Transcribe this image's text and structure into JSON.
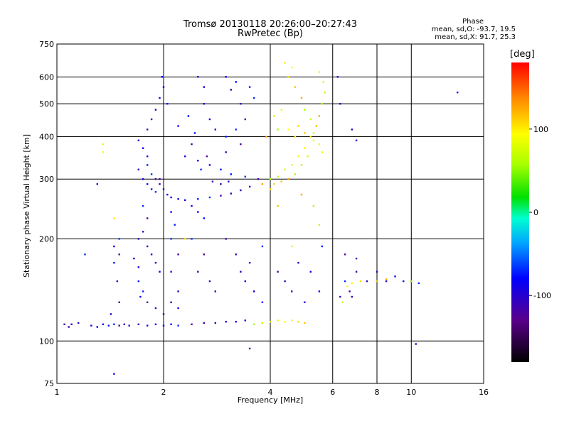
{
  "chart_data": {
    "type": "scatter",
    "title": "Tromsø 20130118 20:26:00–20:27:43",
    "subtitle": "RwPretec (Bp)",
    "xlabel": "Frequency [MHz]",
    "ylabel": "Stationary phase Virtual Height [km]",
    "x_scale": "log",
    "y_scale": "log",
    "xlim": [
      1,
      16
    ],
    "ylim": [
      75,
      750
    ],
    "x_ticks": [
      1,
      2,
      4,
      6,
      8,
      10,
      16
    ],
    "y_ticks": [
      75,
      100,
      200,
      300,
      400,
      500,
      600,
      750
    ],
    "grid": true,
    "stats": {
      "title": "Phase",
      "o_mode": "mean, sd,O:  -93.7, 19.5",
      "x_mode": "mean, sd,X:  91.7, 25.3"
    },
    "colorbar": {
      "label": "[deg]",
      "ticks": [
        100,
        0,
        -100
      ],
      "range": [
        -180,
        180
      ],
      "colormap": "rainbow"
    },
    "series": [
      {
        "mode": "O",
        "phase_mean": -93.7,
        "phase_sd": 19.5,
        "points": [
          [
            1.05,
            112
          ],
          [
            1.08,
            110
          ],
          [
            1.1,
            112
          ],
          [
            1.15,
            113
          ],
          [
            1.25,
            111
          ],
          [
            1.3,
            110
          ],
          [
            1.35,
            112
          ],
          [
            1.4,
            111
          ],
          [
            1.45,
            112
          ],
          [
            1.5,
            111
          ],
          [
            1.55,
            112
          ],
          [
            1.6,
            111
          ],
          [
            1.7,
            112
          ],
          [
            1.8,
            111
          ],
          [
            1.9,
            112
          ],
          [
            2.0,
            111
          ],
          [
            2.1,
            112
          ],
          [
            2.2,
            111
          ],
          [
            2.4,
            112
          ],
          [
            2.6,
            113
          ],
          [
            2.8,
            113
          ],
          [
            3.0,
            114
          ],
          [
            3.2,
            114
          ],
          [
            3.4,
            115
          ],
          [
            1.45,
            190
          ],
          [
            1.45,
            170
          ],
          [
            1.5,
            200
          ],
          [
            1.5,
            180
          ],
          [
            1.48,
            150
          ],
          [
            1.5,
            130
          ],
          [
            1.42,
            120
          ],
          [
            1.7,
            390
          ],
          [
            1.75,
            370
          ],
          [
            1.8,
            350
          ],
          [
            1.8,
            330
          ],
          [
            1.85,
            310
          ],
          [
            1.9,
            300
          ],
          [
            1.95,
            290
          ],
          [
            2.0,
            280
          ],
          [
            2.05,
            270
          ],
          [
            2.1,
            265
          ],
          [
            2.2,
            262
          ],
          [
            2.3,
            260
          ],
          [
            2.5,
            262
          ],
          [
            2.7,
            265
          ],
          [
            2.9,
            268
          ],
          [
            3.1,
            272
          ],
          [
            3.3,
            278
          ],
          [
            3.5,
            285
          ],
          [
            1.7,
            320
          ],
          [
            1.75,
            300
          ],
          [
            1.8,
            290
          ],
          [
            1.85,
            280
          ],
          [
            1.9,
            275
          ],
          [
            1.95,
            300
          ],
          [
            1.8,
            420
          ],
          [
            1.85,
            450
          ],
          [
            1.9,
            480
          ],
          [
            1.95,
            520
          ],
          [
            2.0,
            560
          ],
          [
            1.98,
            600
          ],
          [
            2.05,
            500
          ],
          [
            1.75,
            250
          ],
          [
            1.8,
            230
          ],
          [
            1.75,
            210
          ],
          [
            1.7,
            200
          ],
          [
            1.8,
            190
          ],
          [
            1.85,
            180
          ],
          [
            1.9,
            170
          ],
          [
            1.95,
            160
          ],
          [
            1.7,
            150
          ],
          [
            1.75,
            140
          ],
          [
            1.8,
            130
          ],
          [
            1.9,
            125
          ],
          [
            2.0,
            120
          ],
          [
            1.65,
            175
          ],
          [
            1.7,
            165
          ],
          [
            1.72,
            135
          ],
          [
            2.1,
            240
          ],
          [
            2.15,
            220
          ],
          [
            2.1,
            200
          ],
          [
            2.2,
            180
          ],
          [
            2.1,
            160
          ],
          [
            2.2,
            140
          ],
          [
            2.1,
            130
          ],
          [
            2.2,
            125
          ],
          [
            2.4,
            250
          ],
          [
            2.5,
            240
          ],
          [
            2.6,
            230
          ],
          [
            2.4,
            200
          ],
          [
            2.6,
            180
          ],
          [
            2.5,
            160
          ],
          [
            2.7,
            150
          ],
          [
            2.8,
            140
          ],
          [
            2.6,
            500
          ],
          [
            2.7,
            450
          ],
          [
            2.8,
            420
          ],
          [
            3.0,
            400
          ],
          [
            3.2,
            420
          ],
          [
            3.4,
            450
          ],
          [
            3.3,
            500
          ],
          [
            3.1,
            550
          ],
          [
            2.5,
            600
          ],
          [
            2.6,
            560
          ],
          [
            3.0,
            600
          ],
          [
            3.2,
            580
          ],
          [
            3.5,
            560
          ],
          [
            3.6,
            520
          ],
          [
            3.3,
            380
          ],
          [
            3.0,
            360
          ],
          [
            2.4,
            380
          ],
          [
            2.3,
            350
          ],
          [
            2.5,
            340
          ],
          [
            2.7,
            330
          ],
          [
            2.9,
            320
          ],
          [
            3.1,
            310
          ],
          [
            3.4,
            305
          ],
          [
            3.7,
            300
          ],
          [
            3.0,
            200
          ],
          [
            3.2,
            180
          ],
          [
            3.3,
            160
          ],
          [
            3.4,
            150
          ],
          [
            3.6,
            140
          ],
          [
            3.8,
            130
          ],
          [
            3.5,
            170
          ],
          [
            3.8,
            190
          ],
          [
            4.2,
            160
          ],
          [
            4.4,
            150
          ],
          [
            4.6,
            140
          ],
          [
            4.8,
            170
          ],
          [
            5.0,
            130
          ],
          [
            5.2,
            160
          ],
          [
            5.5,
            140
          ],
          [
            5.6,
            190
          ],
          [
            6.5,
            150
          ],
          [
            6.7,
            140
          ],
          [
            7.0,
            160
          ],
          [
            7.5,
            150
          ],
          [
            8.0,
            160
          ],
          [
            8.5,
            150
          ],
          [
            9.0,
            155
          ],
          [
            9.5,
            150
          ],
          [
            10.0,
            150
          ],
          [
            10.5,
            148
          ],
          [
            6.5,
            180
          ],
          [
            7.0,
            175
          ],
          [
            6.3,
            500
          ],
          [
            6.8,
            420
          ],
          [
            7.0,
            390
          ],
          [
            6.2,
            600
          ],
          [
            13.5,
            540
          ],
          [
            1.3,
            290
          ],
          [
            1.2,
            180
          ],
          [
            3.5,
            95
          ],
          [
            6.3,
            135
          ],
          [
            6.8,
            135
          ],
          [
            10.3,
            98
          ],
          [
            1.45,
            80
          ],
          [
            2.2,
            430
          ],
          [
            2.35,
            460
          ],
          [
            2.45,
            410
          ],
          [
            2.55,
            320
          ],
          [
            2.65,
            350
          ],
          [
            2.75,
            295
          ],
          [
            2.9,
            290
          ],
          [
            3.05,
            295
          ]
        ]
      },
      {
        "mode": "X",
        "phase_mean": 91.7,
        "phase_sd": 25.3,
        "points": [
          [
            3.6,
            112
          ],
          [
            3.8,
            113
          ],
          [
            4.0,
            114
          ],
          [
            4.2,
            115
          ],
          [
            4.4,
            114
          ],
          [
            4.6,
            115
          ],
          [
            4.8,
            114
          ],
          [
            5.0,
            113
          ],
          [
            3.8,
            290
          ],
          [
            4.0,
            300
          ],
          [
            4.2,
            305
          ],
          [
            4.4,
            320
          ],
          [
            4.6,
            330
          ],
          [
            4.8,
            350
          ],
          [
            5.0,
            370
          ],
          [
            5.2,
            400
          ],
          [
            5.4,
            430
          ],
          [
            5.5,
            460
          ],
          [
            5.6,
            500
          ],
          [
            5.7,
            540
          ],
          [
            5.65,
            580
          ],
          [
            5.5,
            620
          ],
          [
            4.6,
            640
          ],
          [
            4.4,
            660
          ],
          [
            4.5,
            600
          ],
          [
            4.7,
            560
          ],
          [
            4.9,
            520
          ],
          [
            5.0,
            480
          ],
          [
            5.2,
            450
          ],
          [
            5.3,
            410
          ],
          [
            5.5,
            380
          ],
          [
            5.6,
            360
          ],
          [
            4.0,
            280
          ],
          [
            4.1,
            290
          ],
          [
            4.3,
            295
          ],
          [
            4.5,
            300
          ],
          [
            4.7,
            310
          ],
          [
            4.9,
            330
          ],
          [
            5.1,
            350
          ],
          [
            5.3,
            390
          ],
          [
            6.6,
            145
          ],
          [
            6.8,
            148
          ],
          [
            7.2,
            150
          ],
          [
            8.0,
            150
          ],
          [
            8.5,
            152
          ],
          [
            10.0,
            150
          ],
          [
            6.4,
            130
          ],
          [
            4.6,
            190
          ],
          [
            1.35,
            380
          ],
          [
            1.35,
            360
          ],
          [
            1.45,
            230
          ],
          [
            2.3,
            200
          ],
          [
            4.2,
            250
          ],
          [
            4.9,
            270
          ],
          [
            5.3,
            250
          ],
          [
            5.5,
            220
          ],
          [
            4.1,
            460
          ],
          [
            4.3,
            480
          ],
          [
            4.5,
            420
          ],
          [
            4.7,
            400
          ],
          [
            4.8,
            430
          ],
          [
            5.0,
            410
          ],
          [
            3.9,
            400
          ],
          [
            4.2,
            420
          ]
        ]
      }
    ]
  }
}
